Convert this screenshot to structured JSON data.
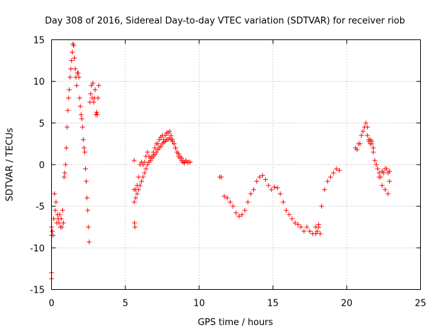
{
  "chart_data": {
    "type": "scatter",
    "title": "Day 308 of 2016, Sidereal Day-to-day VTEC variation (SDTVAR) for receiver riob",
    "xlabel": "GPS time / hours",
    "ylabel": "SDTVAR / TECUs",
    "xlim": [
      0,
      25
    ],
    "ylim": [
      -15,
      15
    ],
    "xticks": [
      "0",
      "5",
      "10",
      "15",
      "20",
      "25"
    ],
    "yticks": [
      "15",
      "10",
      "5",
      "0",
      "-5",
      "-10",
      "-15"
    ],
    "grid": true,
    "marker": "plus",
    "color": "#ff0000",
    "series": [
      {
        "name": "SDTVAR",
        "x": [
          0.0,
          0.0,
          0.0,
          0.0,
          0.05,
          0.1,
          0.15,
          0.2,
          0.25,
          0.3,
          0.35,
          0.4,
          0.45,
          0.5,
          0.55,
          0.6,
          0.65,
          0.7,
          0.75,
          0.8,
          0.85,
          0.9,
          0.95,
          1.0,
          1.05,
          1.1,
          1.15,
          1.2,
          1.25,
          1.3,
          1.35,
          1.4,
          1.45,
          1.5,
          1.55,
          1.6,
          1.65,
          1.7,
          1.75,
          1.8,
          1.85,
          1.9,
          1.95,
          2.0,
          2.05,
          2.1,
          2.15,
          2.2,
          2.25,
          2.3,
          2.35,
          2.4,
          2.45,
          2.5,
          2.55,
          2.6,
          2.65,
          2.7,
          2.75,
          2.8,
          2.85,
          2.9,
          2.95,
          3.0,
          3.05,
          3.1,
          3.15,
          3.2,
          5.6,
          5.62,
          5.65,
          5.6,
          5.7,
          5.8,
          5.9,
          6.0,
          6.1,
          6.2,
          6.3,
          6.4,
          6.5,
          6.6,
          6.7,
          6.8,
          6.9,
          7.0,
          7.1,
          7.2,
          7.3,
          7.4,
          7.5,
          7.6,
          7.7,
          7.8,
          7.9,
          8.0,
          8.1,
          8.2,
          8.3,
          8.4,
          8.5,
          8.6,
          8.7,
          8.8,
          8.9,
          9.0,
          9.1,
          9.2,
          9.3,
          9.4,
          5.6,
          5.7,
          5.8,
          5.9,
          6.0,
          6.1,
          6.2,
          6.3,
          6.4,
          6.5,
          6.6,
          6.7,
          6.8,
          6.9,
          7.0,
          7.1,
          7.2,
          7.3,
          7.4,
          7.5,
          7.6,
          7.7,
          7.8,
          7.9,
          8.0,
          8.1,
          8.2,
          8.3,
          8.4,
          8.5,
          8.6,
          8.7,
          8.8,
          8.9,
          9.0,
          11.4,
          11.5,
          11.7,
          11.9,
          12.1,
          12.3,
          12.5,
          12.7,
          12.9,
          13.1,
          13.3,
          13.5,
          13.7,
          13.9,
          14.1,
          14.3,
          14.5,
          14.7,
          14.9,
          15.1,
          15.3,
          15.5,
          15.7,
          15.9,
          16.1,
          16.3,
          16.5,
          16.7,
          16.9,
          17.1,
          17.3,
          17.5,
          17.7,
          17.9,
          18.1,
          18.3,
          18.5,
          18.7,
          18.9,
          19.1,
          19.3,
          19.5,
          17.9,
          18.0,
          18.1,
          18.2,
          20.6,
          20.7,
          20.8,
          20.9,
          21.0,
          21.1,
          21.2,
          21.3,
          21.4,
          21.5,
          21.6,
          21.7,
          21.8,
          21.9,
          22.0,
          22.1,
          22.2,
          22.3,
          22.4,
          22.5,
          22.6,
          22.7,
          22.8,
          22.9,
          21.4,
          21.5,
          21.6,
          21.7,
          21.8,
          22.0,
          22.2,
          22.4,
          22.6,
          22.8,
          22.9
        ],
        "y": [
          -13.7,
          -13.0,
          -8.5,
          -7.5,
          -8.0,
          -8.5,
          -6.5,
          -3.5,
          -5.5,
          -4.5,
          -7.0,
          -6.0,
          -6.5,
          -7.0,
          -6.0,
          -7.5,
          -6.5,
          -7.5,
          -5.5,
          -7.0,
          -1.5,
          -1.0,
          0.0,
          2.0,
          4.5,
          6.5,
          8.0,
          9.0,
          10.5,
          11.5,
          12.5,
          13.5,
          14.5,
          14.3,
          12.8,
          11.5,
          10.5,
          9.5,
          11.0,
          11.0,
          10.5,
          8.0,
          7.0,
          6.0,
          5.5,
          4.5,
          3.0,
          2.0,
          1.5,
          -0.5,
          -2.0,
          -4.0,
          -5.5,
          -7.5,
          -9.3,
          7.5,
          8.5,
          9.5,
          8.0,
          9.8,
          7.5,
          8.0,
          9.0,
          6.0,
          6.3,
          6.0,
          8.0,
          9.5,
          0.5,
          -7.0,
          -7.5,
          -3.0,
          -3.0,
          -2.5,
          -1.5,
          0.0,
          0.3,
          0.0,
          0.3,
          1.0,
          1.5,
          1.0,
          0.8,
          1.0,
          1.5,
          2.0,
          2.5,
          2.5,
          3.0,
          3.3,
          3.5,
          3.0,
          3.5,
          3.8,
          3.8,
          4.0,
          3.5,
          3.0,
          2.5,
          2.0,
          1.5,
          1.3,
          1.0,
          0.8,
          0.5,
          0.3,
          0.5,
          0.3,
          0.3,
          0.3,
          -4.5,
          -4.0,
          -3.5,
          -3.0,
          -2.5,
          -2.0,
          -1.5,
          -1.0,
          -0.5,
          0.0,
          0.3,
          0.5,
          0.8,
          1.0,
          1.2,
          1.5,
          1.8,
          2.0,
          2.2,
          2.5,
          2.7,
          2.8,
          3.0,
          3.0,
          3.2,
          3.0,
          2.8,
          2.5,
          2.0,
          1.5,
          1.0,
          0.8,
          0.5,
          0.3,
          0.2,
          -1.5,
          -1.5,
          -3.8,
          -4.0,
          -4.5,
          -5.0,
          -5.8,
          -6.2,
          -6.0,
          -5.5,
          -4.5,
          -3.5,
          -3.0,
          -2.0,
          -1.5,
          -1.3,
          -1.8,
          -2.5,
          -3.0,
          -2.7,
          -2.8,
          -3.5,
          -4.5,
          -5.5,
          -6.0,
          -6.5,
          -7.0,
          -7.2,
          -7.5,
          -8.0,
          -7.5,
          -8.0,
          -8.3,
          -8.3,
          -7.5,
          -5.0,
          -3.0,
          -2.0,
          -1.5,
          -1.0,
          -0.5,
          -0.7,
          -7.5,
          -8.0,
          -7.2,
          -8.3,
          2.0,
          1.8,
          2.5,
          2.5,
          3.5,
          4.0,
          4.5,
          5.0,
          4.5,
          3.0,
          2.5,
          2.8,
          1.5,
          0.5,
          0.0,
          -0.5,
          -1.0,
          -1.5,
          -0.8,
          -1.0,
          -0.5,
          -0.5,
          -1.0,
          -0.8,
          3.5,
          2.8,
          3.0,
          2.5,
          2.0,
          0.0,
          -1.5,
          -2.5,
          -3.0,
          -3.5,
          -2.0
        ]
      }
    ]
  }
}
